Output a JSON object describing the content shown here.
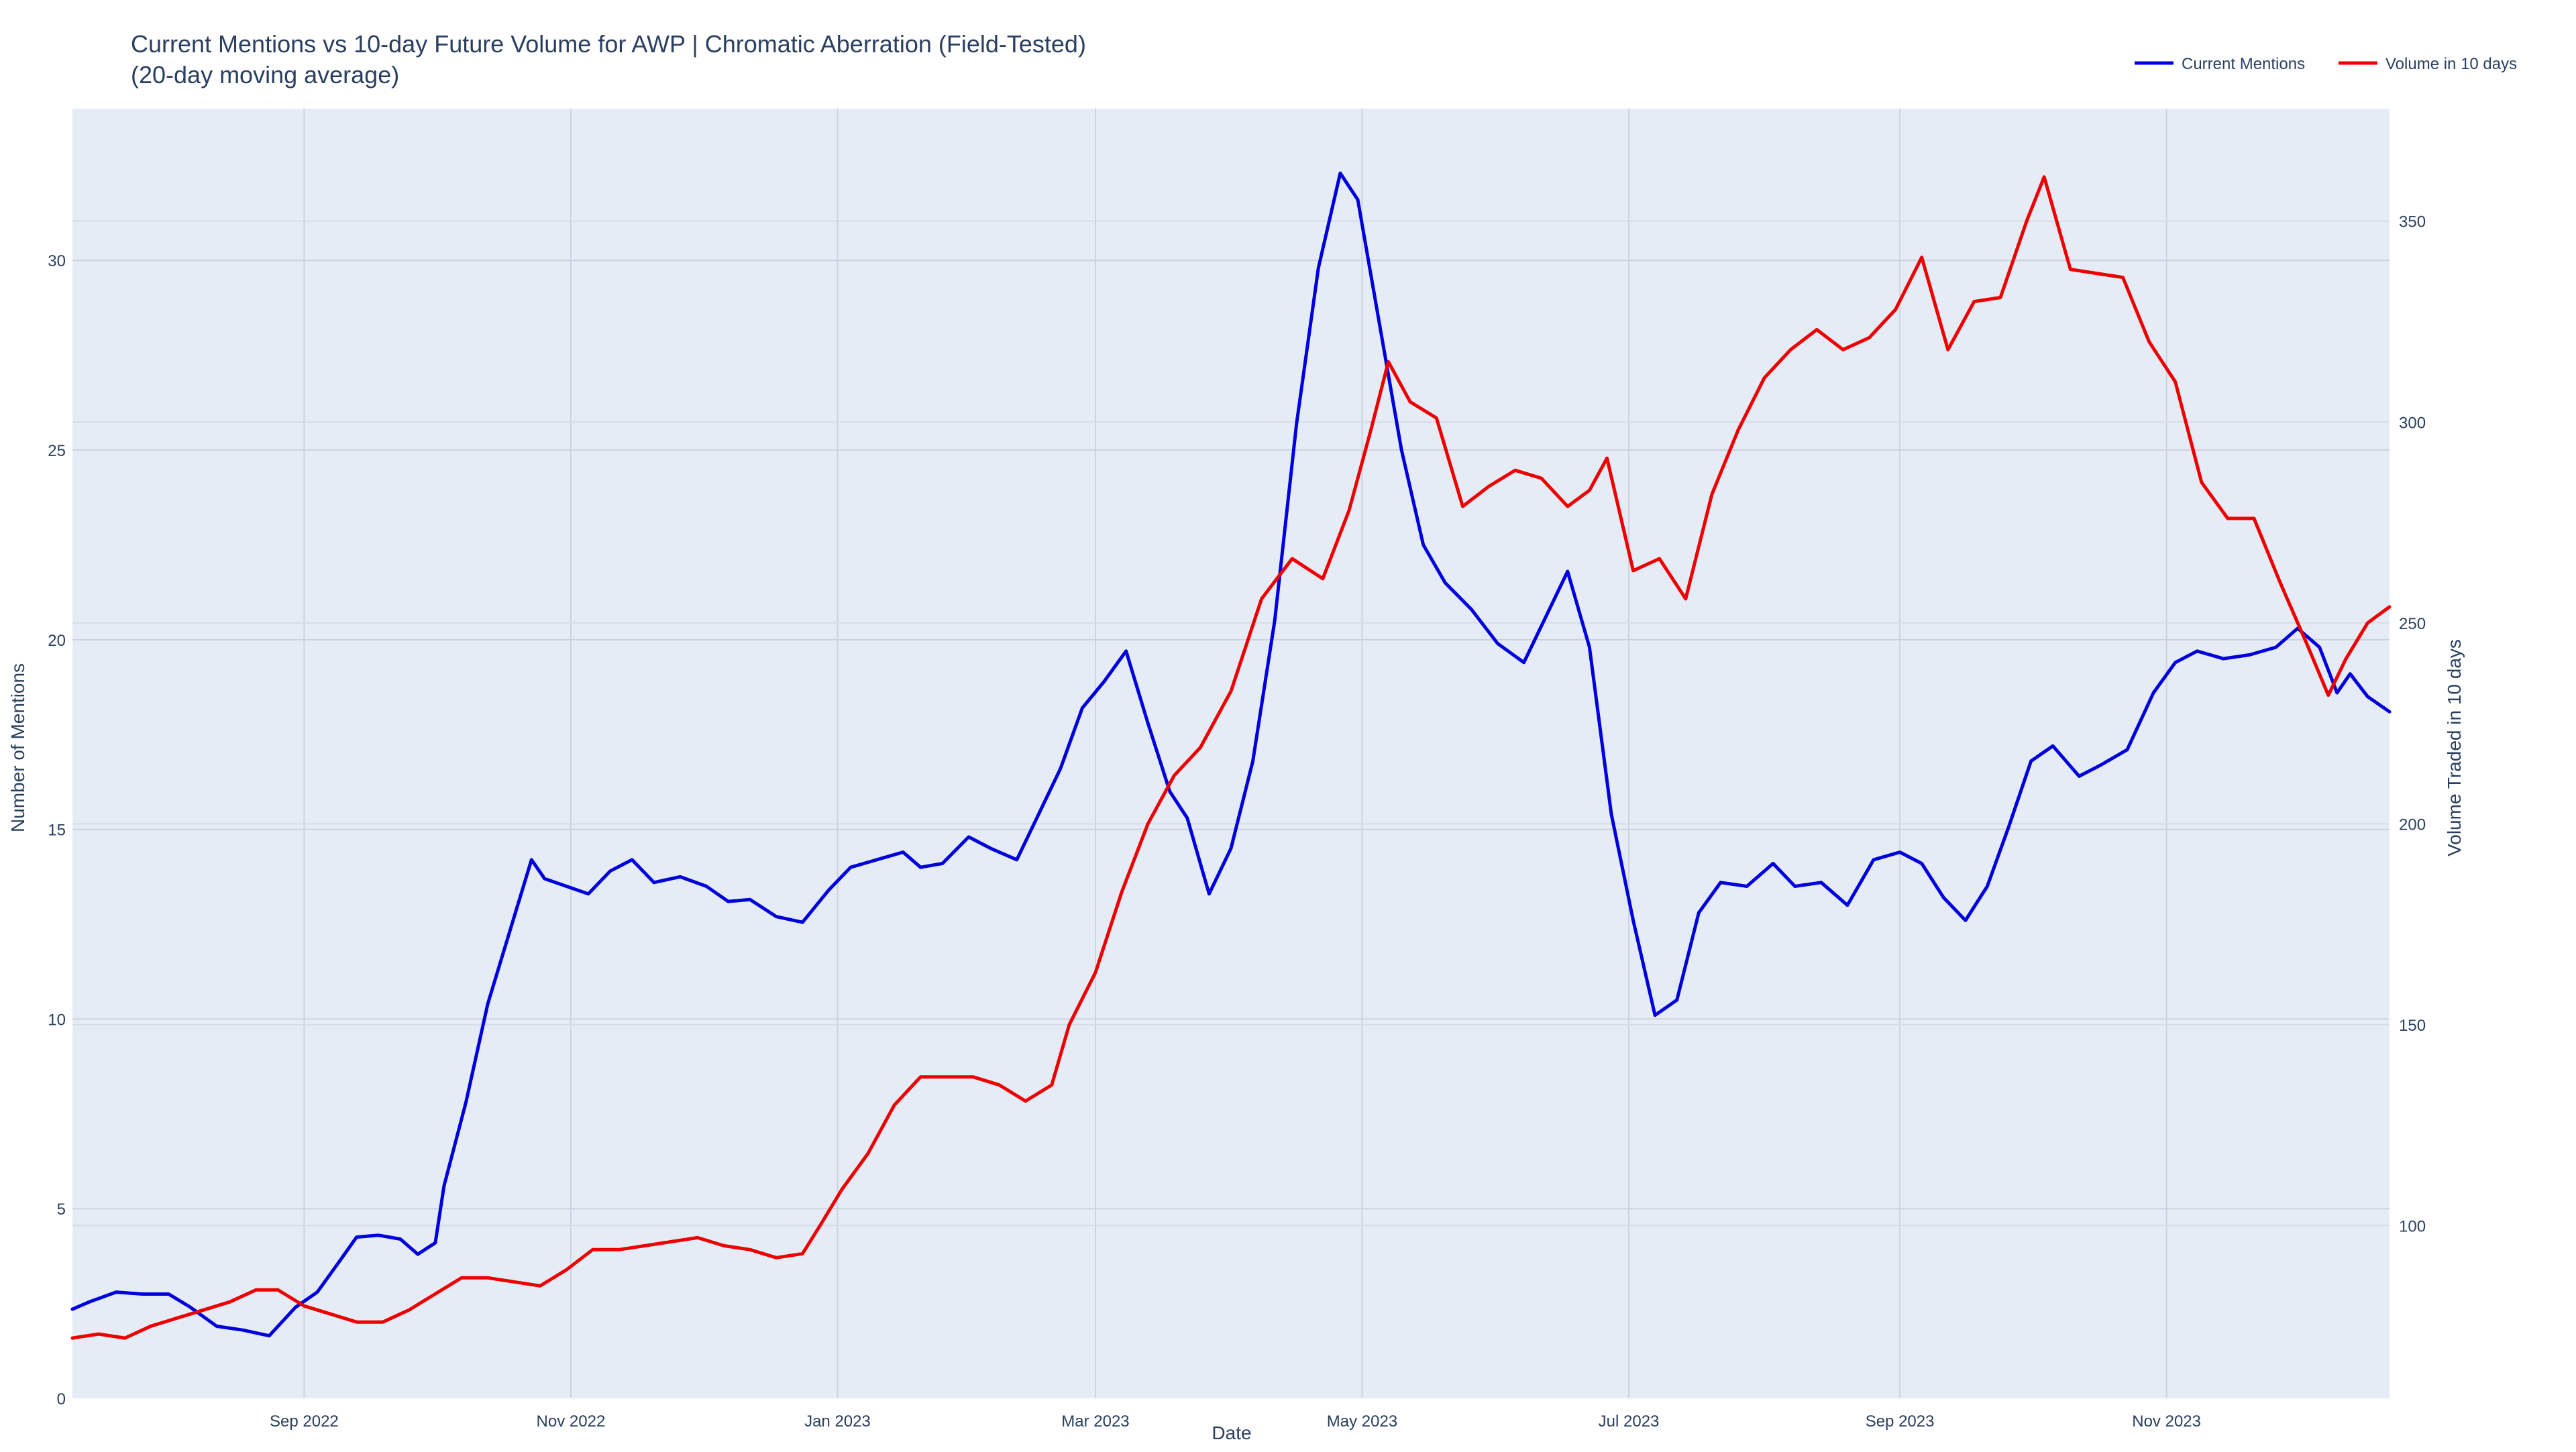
{
  "chart_data": {
    "type": "line",
    "title_line1": "Current Mentions vs 10-day Future Volume for AWP | Chromatic Aberration (Field-Tested)",
    "title_line2": "(20-day moving average)",
    "xlabel": "Date",
    "ylabel_left": "Number of Mentions",
    "ylabel_right": "Volume Traded in 10 days",
    "x_range": [
      "2022-07-10",
      "2023-12-22"
    ],
    "y_left_range": [
      0,
      34
    ],
    "y_right_range": [
      57,
      378
    ],
    "x_ticks": [
      {
        "date": "2022-09-01",
        "label": "Sep 2022"
      },
      {
        "date": "2022-11-01",
        "label": "Nov 2022"
      },
      {
        "date": "2023-01-01",
        "label": "Jan 2023"
      },
      {
        "date": "2023-03-01",
        "label": "Mar 2023"
      },
      {
        "date": "2023-05-01",
        "label": "May 2023"
      },
      {
        "date": "2023-07-01",
        "label": "Jul 2023"
      },
      {
        "date": "2023-09-01",
        "label": "Sep 2023"
      },
      {
        "date": "2023-11-01",
        "label": "Nov 2023"
      }
    ],
    "y_left_ticks": [
      0,
      5,
      10,
      15,
      20,
      25,
      30
    ],
    "y_right_ticks": [
      100,
      150,
      200,
      250,
      300,
      350
    ],
    "grid": true,
    "legend_position": "top-right",
    "series": [
      {
        "name": "Current Mentions",
        "axis": "left",
        "color": "#0000dd",
        "points": [
          [
            "2022-07-10",
            2.35
          ],
          [
            "2022-07-14",
            2.55
          ],
          [
            "2022-07-20",
            2.8
          ],
          [
            "2022-07-26",
            2.75
          ],
          [
            "2022-08-01",
            2.75
          ],
          [
            "2022-08-06",
            2.4
          ],
          [
            "2022-08-12",
            1.9
          ],
          [
            "2022-08-18",
            1.8
          ],
          [
            "2022-08-24",
            1.65
          ],
          [
            "2022-08-30",
            2.4
          ],
          [
            "2022-09-04",
            2.8
          ],
          [
            "2022-09-09",
            3.6
          ],
          [
            "2022-09-13",
            4.25
          ],
          [
            "2022-09-18",
            4.3
          ],
          [
            "2022-09-23",
            4.2
          ],
          [
            "2022-09-27",
            3.8
          ],
          [
            "2022-10-01",
            4.1
          ],
          [
            "2022-10-03",
            5.6
          ],
          [
            "2022-10-08",
            7.8
          ],
          [
            "2022-10-13",
            10.4
          ],
          [
            "2022-10-18",
            12.3
          ],
          [
            "2022-10-23",
            14.2
          ],
          [
            "2022-10-26",
            13.7
          ],
          [
            "2022-10-31",
            13.5
          ],
          [
            "2022-11-05",
            13.3
          ],
          [
            "2022-11-10",
            13.9
          ],
          [
            "2022-11-15",
            14.2
          ],
          [
            "2022-11-20",
            13.6
          ],
          [
            "2022-11-26",
            13.75
          ],
          [
            "2022-12-02",
            13.5
          ],
          [
            "2022-12-07",
            13.1
          ],
          [
            "2022-12-12",
            13.15
          ],
          [
            "2022-12-18",
            12.7
          ],
          [
            "2022-12-24",
            12.55
          ],
          [
            "2022-12-30",
            13.4
          ],
          [
            "2023-01-04",
            14.0
          ],
          [
            "2023-01-10",
            14.2
          ],
          [
            "2023-01-16",
            14.4
          ],
          [
            "2023-01-20",
            14.0
          ],
          [
            "2023-01-25",
            14.1
          ],
          [
            "2023-01-31",
            14.8
          ],
          [
            "2023-02-05",
            14.5
          ],
          [
            "2023-02-11",
            14.2
          ],
          [
            "2023-02-16",
            15.4
          ],
          [
            "2023-02-21",
            16.6
          ],
          [
            "2023-02-26",
            18.2
          ],
          [
            "2023-03-03",
            18.9
          ],
          [
            "2023-03-08",
            19.7
          ],
          [
            "2023-03-13",
            17.8
          ],
          [
            "2023-03-18",
            16.0
          ],
          [
            "2023-03-22",
            15.3
          ],
          [
            "2023-03-27",
            13.3
          ],
          [
            "2023-04-01",
            14.5
          ],
          [
            "2023-04-06",
            16.8
          ],
          [
            "2023-04-11",
            20.5
          ],
          [
            "2023-04-16",
            25.7
          ],
          [
            "2023-04-21",
            29.8
          ],
          [
            "2023-04-26",
            32.3
          ],
          [
            "2023-04-30",
            31.6
          ],
          [
            "2023-05-05",
            28.3
          ],
          [
            "2023-05-10",
            25.0
          ],
          [
            "2023-05-15",
            22.5
          ],
          [
            "2023-05-20",
            21.5
          ],
          [
            "2023-05-26",
            20.8
          ],
          [
            "2023-06-01",
            19.9
          ],
          [
            "2023-06-07",
            19.4
          ],
          [
            "2023-06-12",
            20.6
          ],
          [
            "2023-06-17",
            21.8
          ],
          [
            "2023-06-22",
            19.8
          ],
          [
            "2023-06-27",
            15.4
          ],
          [
            "2023-07-02",
            12.6
          ],
          [
            "2023-07-07",
            10.1
          ],
          [
            "2023-07-12",
            10.5
          ],
          [
            "2023-07-17",
            12.8
          ],
          [
            "2023-07-22",
            13.6
          ],
          [
            "2023-07-28",
            13.5
          ],
          [
            "2023-08-03",
            14.1
          ],
          [
            "2023-08-08",
            13.5
          ],
          [
            "2023-08-14",
            13.6
          ],
          [
            "2023-08-20",
            13.0
          ],
          [
            "2023-08-26",
            14.2
          ],
          [
            "2023-09-01",
            14.4
          ],
          [
            "2023-09-06",
            14.1
          ],
          [
            "2023-09-11",
            13.2
          ],
          [
            "2023-09-16",
            12.6
          ],
          [
            "2023-09-21",
            13.5
          ],
          [
            "2023-09-26",
            15.1
          ],
          [
            "2023-10-01",
            16.8
          ],
          [
            "2023-10-06",
            17.2
          ],
          [
            "2023-10-12",
            16.4
          ],
          [
            "2023-10-17",
            16.7
          ],
          [
            "2023-10-23",
            17.1
          ],
          [
            "2023-10-29",
            18.6
          ],
          [
            "2023-11-03",
            19.4
          ],
          [
            "2023-11-08",
            19.7
          ],
          [
            "2023-11-14",
            19.5
          ],
          [
            "2023-11-20",
            19.6
          ],
          [
            "2023-11-26",
            19.8
          ],
          [
            "2023-12-01",
            20.3
          ],
          [
            "2023-12-06",
            19.8
          ],
          [
            "2023-12-10",
            18.6
          ],
          [
            "2023-12-13",
            19.1
          ],
          [
            "2023-12-17",
            18.5
          ],
          [
            "2023-12-22",
            18.1
          ]
        ]
      },
      {
        "name": "Volume in 10 days",
        "axis": "right",
        "color": "#ee0000",
        "points": [
          [
            "2022-07-10",
            72
          ],
          [
            "2022-07-16",
            73
          ],
          [
            "2022-07-22",
            72
          ],
          [
            "2022-07-28",
            75
          ],
          [
            "2022-08-03",
            77
          ],
          [
            "2022-08-09",
            79
          ],
          [
            "2022-08-15",
            81
          ],
          [
            "2022-08-21",
            84
          ],
          [
            "2022-08-26",
            84
          ],
          [
            "2022-09-01",
            80
          ],
          [
            "2022-09-07",
            78
          ],
          [
            "2022-09-13",
            76
          ],
          [
            "2022-09-19",
            76
          ],
          [
            "2022-09-25",
            79
          ],
          [
            "2022-10-01",
            83
          ],
          [
            "2022-10-07",
            87
          ],
          [
            "2022-10-13",
            87
          ],
          [
            "2022-10-19",
            86
          ],
          [
            "2022-10-25",
            85
          ],
          [
            "2022-10-31",
            89
          ],
          [
            "2022-11-06",
            94
          ],
          [
            "2022-11-12",
            94
          ],
          [
            "2022-11-18",
            95
          ],
          [
            "2022-11-24",
            96
          ],
          [
            "2022-11-30",
            97
          ],
          [
            "2022-12-06",
            95
          ],
          [
            "2022-12-12",
            94
          ],
          [
            "2022-12-18",
            92
          ],
          [
            "2022-12-24",
            93
          ],
          [
            "2022-12-28",
            100
          ],
          [
            "2023-01-02",
            109
          ],
          [
            "2023-01-08",
            118
          ],
          [
            "2023-01-14",
            130
          ],
          [
            "2023-01-20",
            137
          ],
          [
            "2023-01-26",
            137
          ],
          [
            "2023-02-01",
            137
          ],
          [
            "2023-02-07",
            135
          ],
          [
            "2023-02-13",
            131
          ],
          [
            "2023-02-19",
            135
          ],
          [
            "2023-02-23",
            150
          ],
          [
            "2023-03-01",
            163
          ],
          [
            "2023-03-07",
            183
          ],
          [
            "2023-03-13",
            200
          ],
          [
            "2023-03-19",
            212
          ],
          [
            "2023-03-25",
            219
          ],
          [
            "2023-04-01",
            233
          ],
          [
            "2023-04-08",
            256
          ],
          [
            "2023-04-15",
            266
          ],
          [
            "2023-04-22",
            261
          ],
          [
            "2023-04-28",
            278
          ],
          [
            "2023-05-03",
            298
          ],
          [
            "2023-05-07",
            315
          ],
          [
            "2023-05-12",
            305
          ],
          [
            "2023-05-18",
            301
          ],
          [
            "2023-05-24",
            279
          ],
          [
            "2023-05-30",
            284
          ],
          [
            "2023-06-05",
            288
          ],
          [
            "2023-06-11",
            286
          ],
          [
            "2023-06-17",
            279
          ],
          [
            "2023-06-22",
            283
          ],
          [
            "2023-06-26",
            291
          ],
          [
            "2023-07-02",
            263
          ],
          [
            "2023-07-08",
            266
          ],
          [
            "2023-07-14",
            256
          ],
          [
            "2023-07-20",
            282
          ],
          [
            "2023-07-26",
            298
          ],
          [
            "2023-08-01",
            311
          ],
          [
            "2023-08-07",
            318
          ],
          [
            "2023-08-13",
            323
          ],
          [
            "2023-08-19",
            318
          ],
          [
            "2023-08-25",
            321
          ],
          [
            "2023-08-31",
            328
          ],
          [
            "2023-09-06",
            341
          ],
          [
            "2023-09-12",
            318
          ],
          [
            "2023-09-18",
            330
          ],
          [
            "2023-09-24",
            331
          ],
          [
            "2023-09-30",
            350
          ],
          [
            "2023-10-04",
            361
          ],
          [
            "2023-10-10",
            338
          ],
          [
            "2023-10-16",
            337
          ],
          [
            "2023-10-22",
            336
          ],
          [
            "2023-10-28",
            320
          ],
          [
            "2023-11-03",
            310
          ],
          [
            "2023-11-09",
            285
          ],
          [
            "2023-11-15",
            276
          ],
          [
            "2023-11-21",
            276
          ],
          [
            "2023-11-27",
            260
          ],
          [
            "2023-12-03",
            245
          ],
          [
            "2023-12-08",
            232
          ],
          [
            "2023-12-12",
            241
          ],
          [
            "2023-12-17",
            250
          ],
          [
            "2023-12-22",
            254
          ]
        ]
      }
    ]
  }
}
